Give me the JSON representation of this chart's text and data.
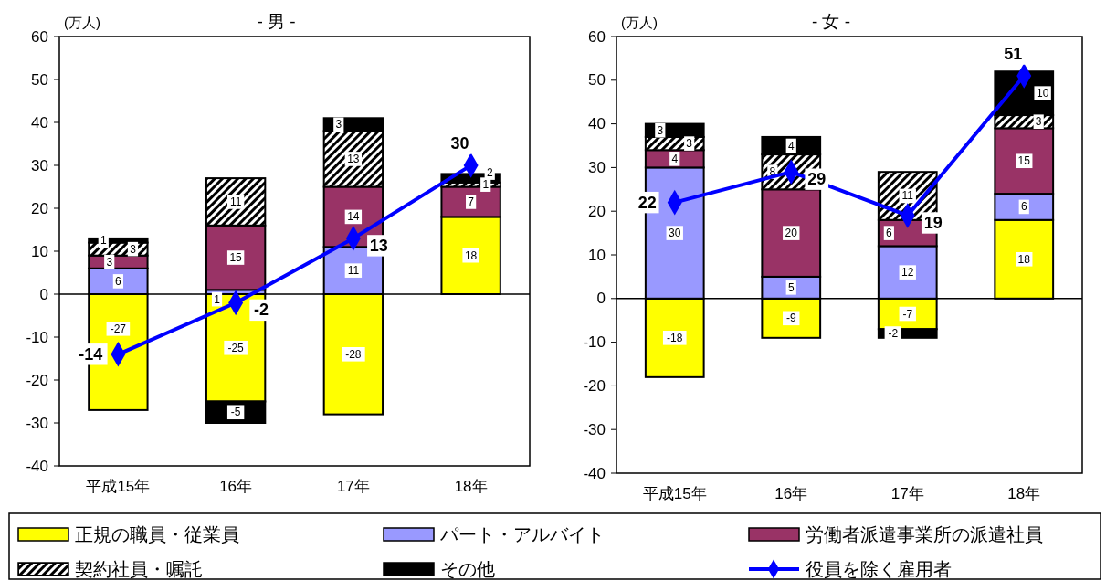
{
  "chart_data": [
    {
      "type": "bar",
      "title": "- 男 -",
      "ylabel": "(万人)",
      "categories": [
        "平成15年",
        "16年",
        "17年",
        "18年"
      ],
      "stacked": true,
      "ylim": [
        -40,
        60
      ],
      "yticks": [
        -40,
        -30,
        -20,
        -10,
        0,
        10,
        20,
        30,
        40,
        50,
        60
      ],
      "legend": "bottom",
      "data_labels": true,
      "marker": "diamond",
      "series": [
        {
          "name": "正規の職員・従業員",
          "color": "#ffff00",
          "values": [
            -27,
            -25,
            -28,
            18
          ]
        },
        {
          "name": "パート・アルバイト",
          "color": "#9999ff",
          "values": [
            6,
            1,
            11,
            null
          ]
        },
        {
          "name": "労働者派遣事業所の派遣社員",
          "color": "#993366",
          "values": [
            3,
            15,
            14,
            7
          ]
        },
        {
          "name": "契約社員・嘱託",
          "color": "#000000",
          "values": [
            3,
            11,
            13,
            1
          ]
        },
        {
          "name": "その他",
          "color": "#000000",
          "values": [
            1,
            -5,
            3,
            2
          ]
        },
        {
          "name": "役員を除く雇用者",
          "type": "line",
          "color": "#0000ff",
          "values": [
            -14,
            -2,
            13,
            30
          ]
        }
      ]
    },
    {
      "type": "bar",
      "title": "- 女 -",
      "ylabel": "(万人)",
      "categories": [
        "平成15年",
        "16年",
        "17年",
        "18年"
      ],
      "stacked": true,
      "ylim": [
        -40,
        60
      ],
      "yticks": [
        -40,
        -30,
        -20,
        -10,
        0,
        10,
        20,
        30,
        40,
        50,
        60
      ],
      "legend": "bottom",
      "data_labels": true,
      "marker": "diamond",
      "series": [
        {
          "name": "正規の職員・従業員",
          "color": "#ffff00",
          "values": [
            -18,
            -9,
            -7,
            18
          ]
        },
        {
          "name": "パート・アルバイト",
          "color": "#9999ff",
          "values": [
            30,
            5,
            12,
            6
          ]
        },
        {
          "name": "労働者派遣事業所の派遣社員",
          "color": "#993366",
          "values": [
            4,
            20,
            6,
            15
          ]
        },
        {
          "name": "契約社員・嘱託",
          "color": "#000000",
          "values": [
            3,
            8,
            11,
            3
          ]
        },
        {
          "name": "その他",
          "color": "#000000",
          "values": [
            3,
            4,
            -2,
            10
          ]
        },
        {
          "name": "役員を除く雇用者",
          "type": "line",
          "color": "#0000ff",
          "values": [
            22,
            29,
            19,
            51
          ]
        }
      ]
    }
  ]
}
